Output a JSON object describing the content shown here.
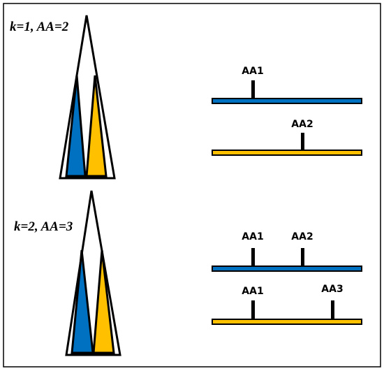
{
  "panels": [
    {
      "label": "k=1, AA=2",
      "tracks": [
        {
          "markers": [
            "AA1"
          ]
        },
        {
          "markers": [
            "AA2"
          ]
        }
      ]
    },
    {
      "label": "k=2, AA=3",
      "tracks": [
        {
          "markers": [
            "AA1",
            "AA2"
          ]
        },
        {
          "markers": [
            "AA1",
            "AA3"
          ]
        }
      ]
    }
  ]
}
